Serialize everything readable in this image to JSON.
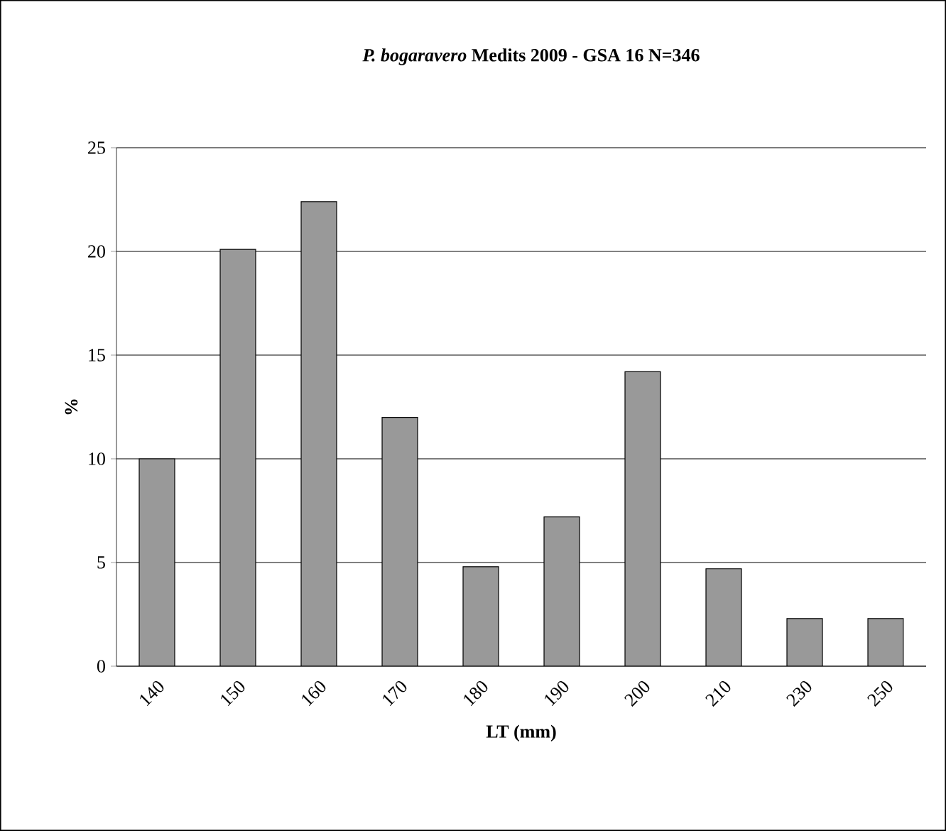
{
  "chart_data": {
    "type": "bar",
    "title": "*P. bogaravero* Medits 2009 - GSA 16 N=346",
    "xlabel": "LT (mm)",
    "ylabel": "%",
    "categories": [
      "140",
      "150",
      "160",
      "170",
      "180",
      "190",
      "200",
      "210",
      "230",
      "250"
    ],
    "values": [
      10.0,
      20.1,
      22.4,
      12.0,
      4.8,
      7.2,
      14.2,
      4.7,
      2.3,
      2.3
    ],
    "color": "#999999",
    "ylim": [
      0,
      25
    ],
    "yticks": [
      0,
      5,
      10,
      15,
      20,
      25
    ],
    "grid": "y"
  }
}
